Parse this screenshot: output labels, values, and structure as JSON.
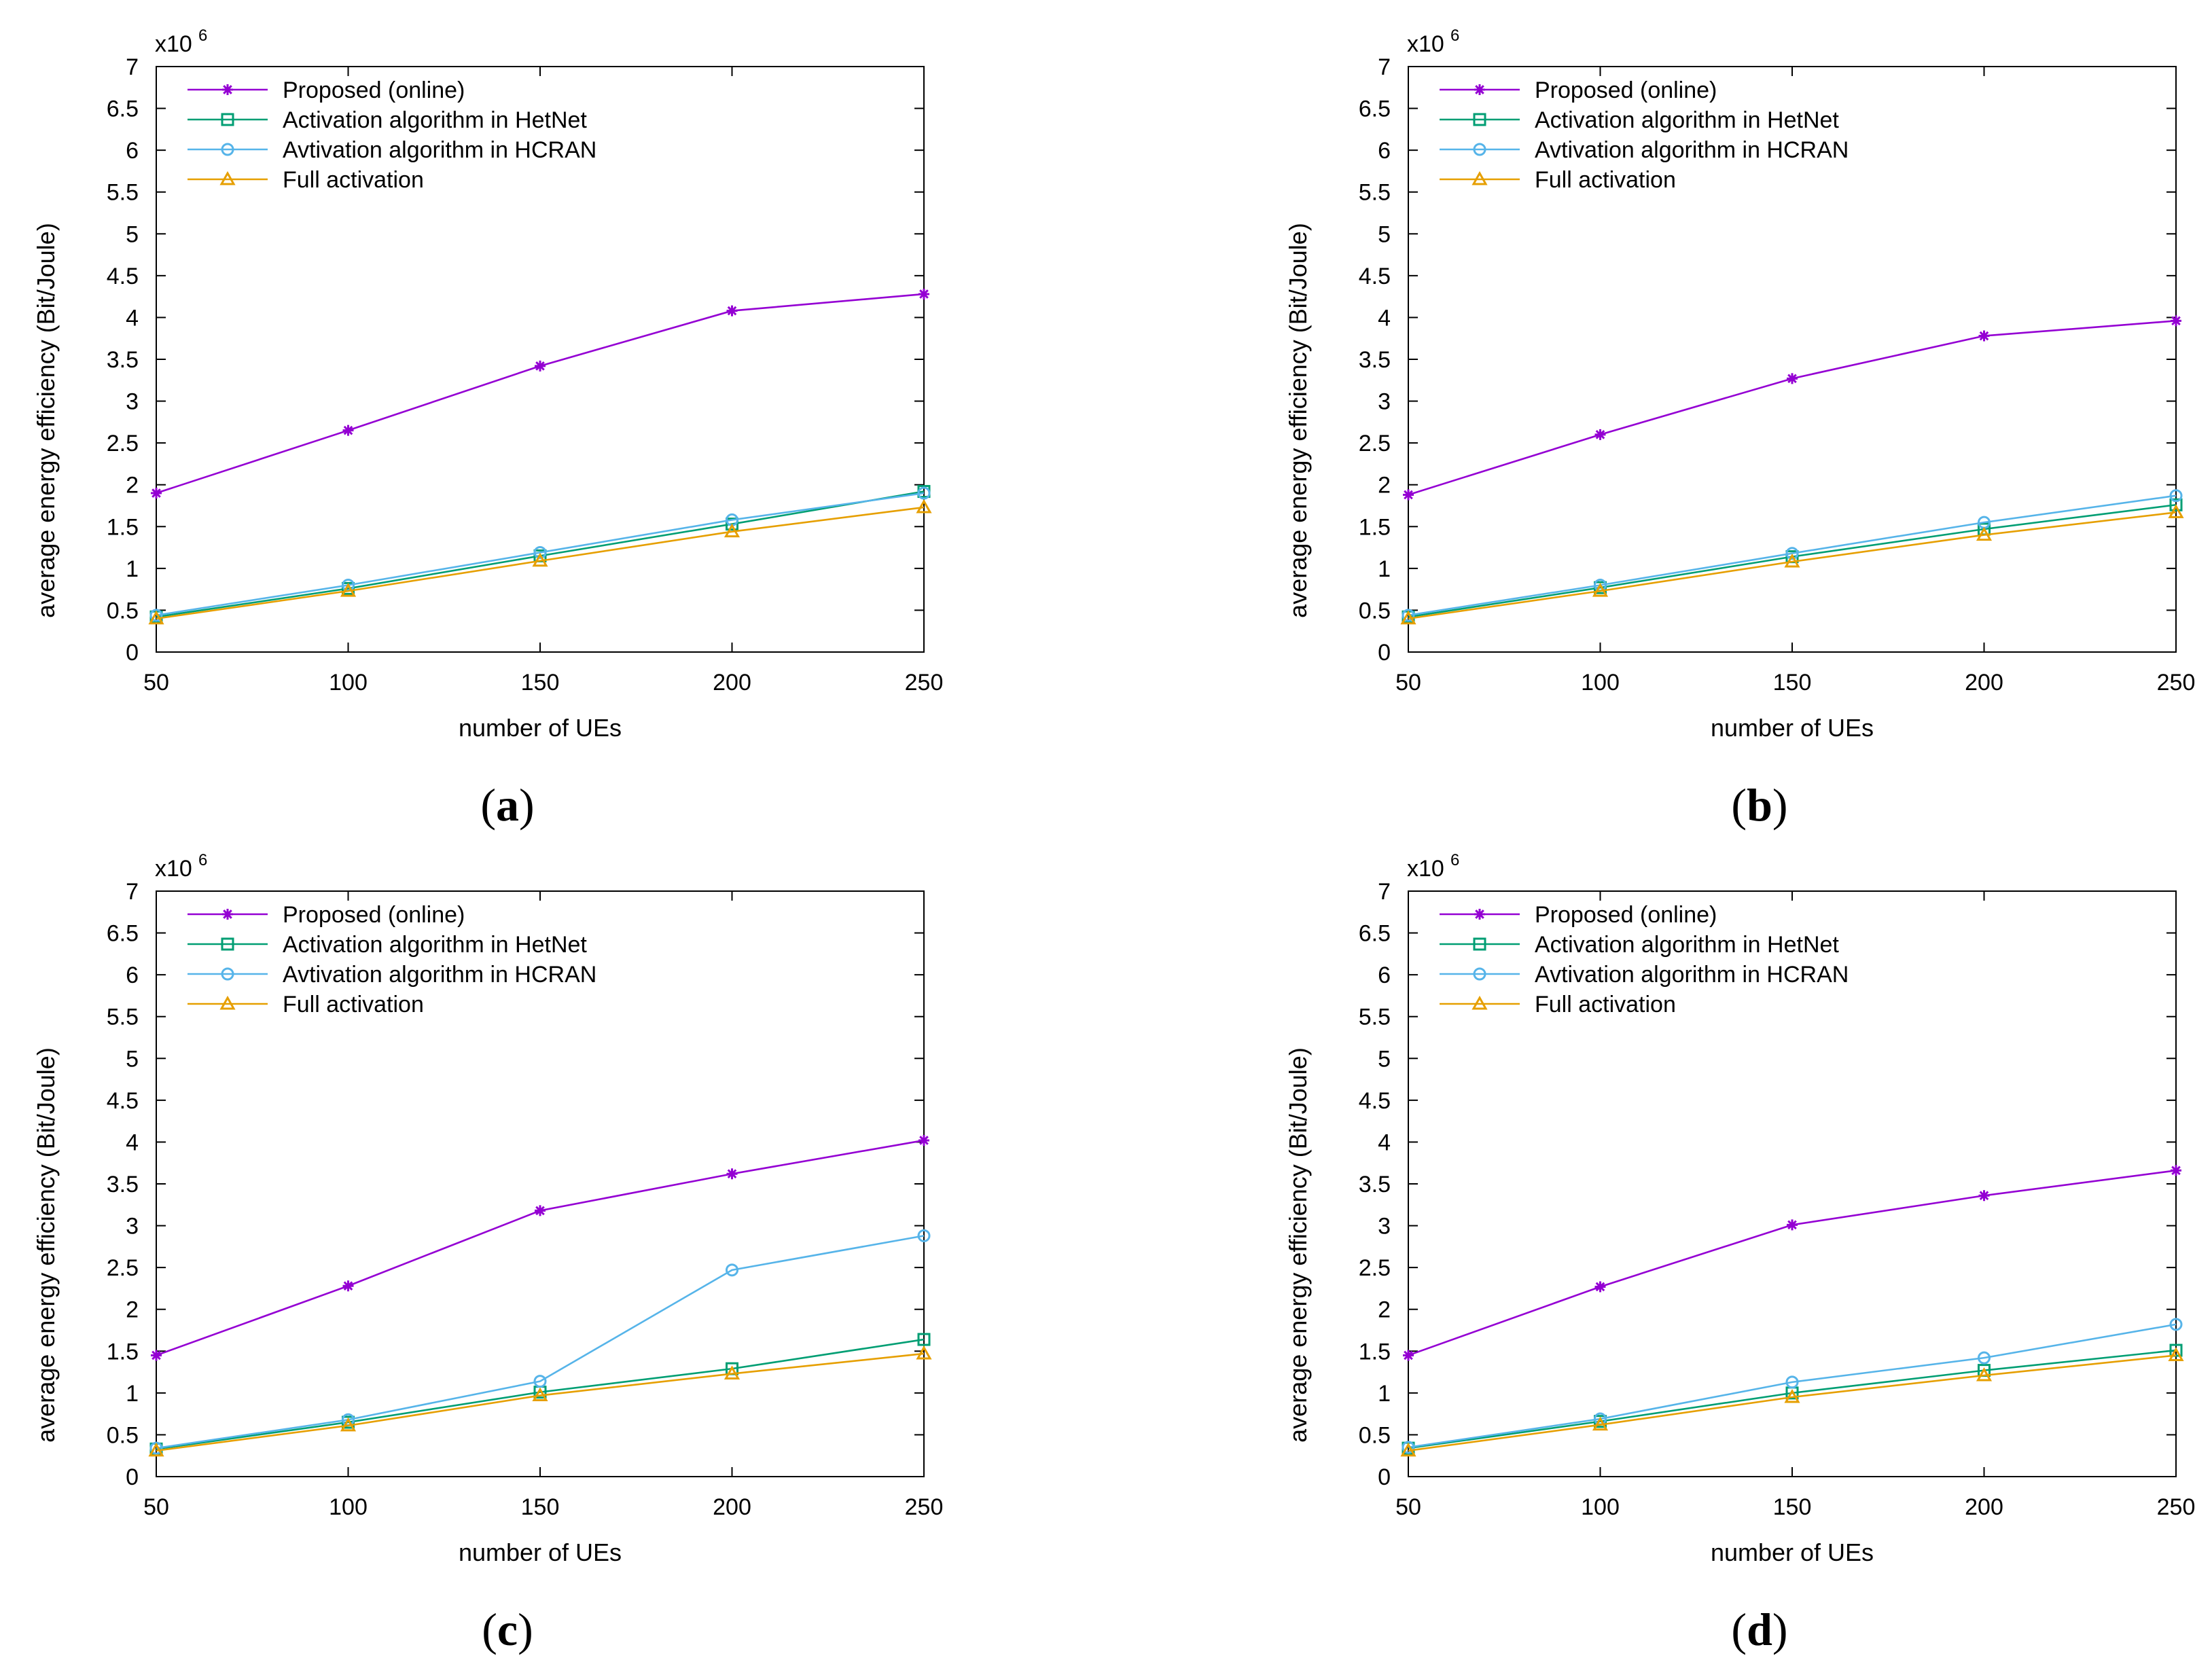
{
  "figure": {
    "colors": {
      "Proposed (online)": "#9400d3",
      "Activation algorithm in HetNet": "#009e73",
      "Avtivation algorithm in HCRAN": "#56b4e9",
      "Full activation": "#e69f00"
    },
    "markers": {
      "Proposed (online)": "star",
      "Activation algorithm in HetNet": "square",
      "Avtivation algorithm in HCRAN": "circle",
      "Full activation": "triangle"
    }
  },
  "chart_data": [
    {
      "type": "line",
      "caption_open": "(",
      "caption_letter": "a",
      "caption_close": ")",
      "xlabel": "number of UEs",
      "ylabel": "average energy efficiency (Bit/Joule)",
      "scale_base": "x10",
      "scale_exp": "6",
      "xlim": [
        50,
        250
      ],
      "ylim": [
        0,
        7
      ],
      "x": [
        50,
        100,
        150,
        200,
        250
      ],
      "xticks": [
        "50",
        "100",
        "150",
        "200",
        "250"
      ],
      "yticks": [
        "0",
        "0.5",
        "1",
        "1.5",
        "2",
        "2.5",
        "3",
        "3.5",
        "4",
        "4.5",
        "5",
        "5.5",
        "6",
        "6.5",
        "7"
      ],
      "legend_position": "top-left",
      "series": [
        {
          "name": "Proposed (online)",
          "values": [
            1.9,
            2.65,
            3.42,
            4.08,
            4.28
          ]
        },
        {
          "name": "Activation algorithm in HetNet",
          "values": [
            0.42,
            0.76,
            1.15,
            1.53,
            1.92
          ]
        },
        {
          "name": "Avtivation algorithm in HCRAN",
          "values": [
            0.44,
            0.8,
            1.19,
            1.58,
            1.9
          ]
        },
        {
          "name": "Full activation",
          "values": [
            0.4,
            0.73,
            1.09,
            1.44,
            1.73
          ]
        }
      ]
    },
    {
      "type": "line",
      "caption_open": "(",
      "caption_letter": "b",
      "caption_close": ")",
      "xlabel": "number of UEs",
      "ylabel": "average energy efficiency (Bit/Joule)",
      "scale_base": "x10",
      "scale_exp": "6",
      "xlim": [
        50,
        250
      ],
      "ylim": [
        0,
        7
      ],
      "x": [
        50,
        100,
        150,
        200,
        250
      ],
      "xticks": [
        "50",
        "100",
        "150",
        "200",
        "250"
      ],
      "yticks": [
        "0",
        "0.5",
        "1",
        "1.5",
        "2",
        "2.5",
        "3",
        "3.5",
        "4",
        "4.5",
        "5",
        "5.5",
        "6",
        "6.5",
        "7"
      ],
      "legend_position": "top-left",
      "series": [
        {
          "name": "Proposed (online)",
          "values": [
            1.88,
            2.6,
            3.27,
            3.78,
            3.96
          ]
        },
        {
          "name": "Activation algorithm in HetNet",
          "values": [
            0.42,
            0.77,
            1.14,
            1.47,
            1.76
          ]
        },
        {
          "name": "Avtivation algorithm in HCRAN",
          "values": [
            0.44,
            0.8,
            1.18,
            1.55,
            1.87
          ]
        },
        {
          "name": "Full activation",
          "values": [
            0.4,
            0.73,
            1.08,
            1.4,
            1.67
          ]
        }
      ]
    },
    {
      "type": "line",
      "caption_open": "(",
      "caption_letter": "c",
      "caption_close": ")",
      "xlabel": "number of UEs",
      "ylabel": "average energy efficiency (Bit/Joule)",
      "scale_base": "x10",
      "scale_exp": "6",
      "xlim": [
        50,
        250
      ],
      "ylim": [
        0,
        7
      ],
      "x": [
        50,
        100,
        150,
        200,
        250
      ],
      "xticks": [
        "50",
        "100",
        "150",
        "200",
        "250"
      ],
      "yticks": [
        "0",
        "0.5",
        "1",
        "1.5",
        "2",
        "2.5",
        "3",
        "3.5",
        "4",
        "4.5",
        "5",
        "5.5",
        "6",
        "6.5",
        "7"
      ],
      "legend_position": "top-left",
      "series": [
        {
          "name": "Proposed (online)",
          "values": [
            1.45,
            2.28,
            3.18,
            3.62,
            4.02
          ]
        },
        {
          "name": "Activation algorithm in HetNet",
          "values": [
            0.33,
            0.65,
            1.01,
            1.29,
            1.64
          ]
        },
        {
          "name": "Avtivation algorithm in HCRAN",
          "values": [
            0.34,
            0.68,
            1.14,
            2.47,
            2.88
          ]
        },
        {
          "name": "Full activation",
          "values": [
            0.31,
            0.61,
            0.97,
            1.23,
            1.47
          ]
        }
      ]
    },
    {
      "type": "line",
      "caption_open": "(",
      "caption_letter": "d",
      "caption_close": ")",
      "xlabel": "number of UEs",
      "ylabel": "average energy efficiency (Bit/Joule)",
      "scale_base": "x10",
      "scale_exp": "6",
      "xlim": [
        50,
        250
      ],
      "ylim": [
        0,
        7
      ],
      "x": [
        50,
        100,
        150,
        200,
        250
      ],
      "xticks": [
        "50",
        "100",
        "150",
        "200",
        "250"
      ],
      "yticks": [
        "0",
        "0.5",
        "1",
        "1.5",
        "2",
        "2.5",
        "3",
        "3.5",
        "4",
        "4.5",
        "5",
        "5.5",
        "6",
        "6.5",
        "7"
      ],
      "legend_position": "top-left",
      "series": [
        {
          "name": "Proposed (online)",
          "values": [
            1.45,
            2.27,
            3.01,
            3.36,
            3.66
          ]
        },
        {
          "name": "Activation algorithm in HetNet",
          "values": [
            0.34,
            0.66,
            1.0,
            1.27,
            1.51
          ]
        },
        {
          "name": "Avtivation algorithm in HCRAN",
          "values": [
            0.35,
            0.69,
            1.13,
            1.42,
            1.82
          ]
        },
        {
          "name": "Full activation",
          "values": [
            0.31,
            0.62,
            0.95,
            1.21,
            1.45
          ]
        }
      ]
    }
  ]
}
